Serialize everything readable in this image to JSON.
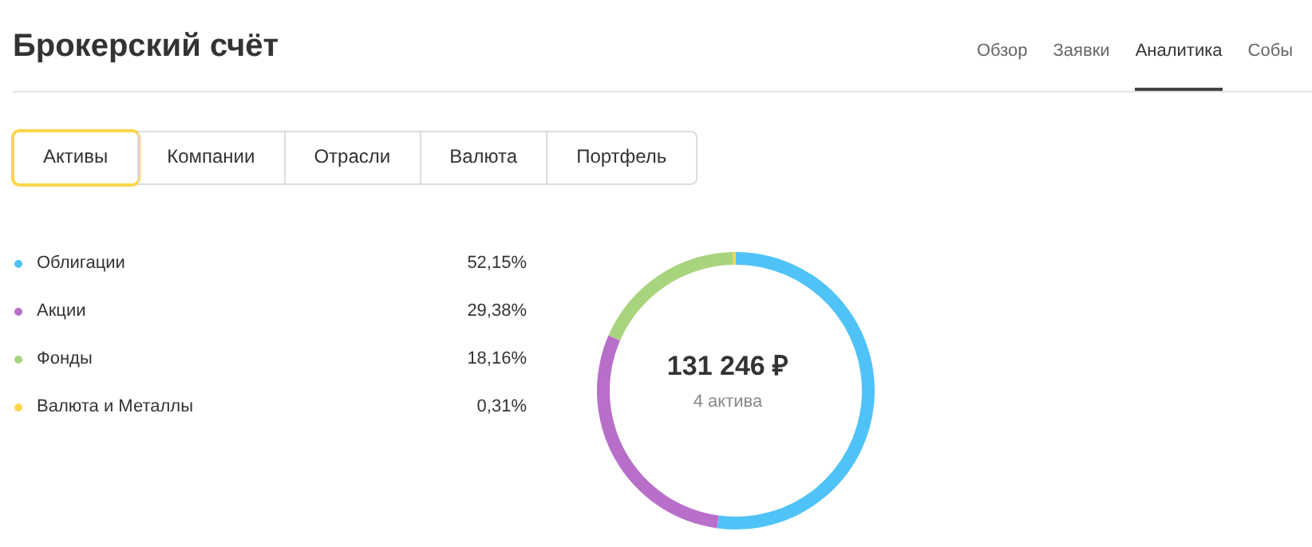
{
  "chart_data": {
    "type": "donut",
    "title": "Брокерский счёт",
    "categories": [
      "Облигации",
      "Акции",
      "Фонды",
      "Валюта и Металлы"
    ],
    "values": [
      52.15,
      29.38,
      18.16,
      0.31
    ],
    "value_labels": [
      "52,15%",
      "29,38%",
      "18,16%",
      "0,31%"
    ],
    "colors": [
      "#4fc3f7",
      "#b86fc9",
      "#a9d47e",
      "#fcd64a"
    ],
    "legend": "left",
    "annotations": [
      "131 246 ₽",
      "4 актива",
      "Обзор",
      "Заявки",
      "Аналитика",
      "Собы",
      "Активы",
      "Компании",
      "Отрасли",
      "Валюта",
      "Портфель"
    ]
  }
}
